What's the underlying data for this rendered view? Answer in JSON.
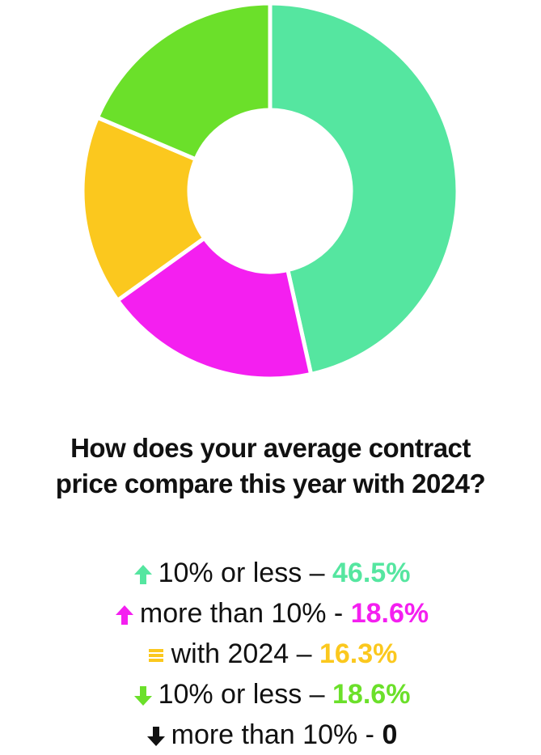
{
  "chart_data": {
    "type": "pie",
    "variant": "donut",
    "title": "How does your average contract price compare this year with 2024?",
    "title_lines": [
      "How does your average contract",
      "price compare this year with 2024?"
    ],
    "categories": [
      "↑ 10% or less",
      "↑ more than 10%",
      "= with 2024",
      "↓ 10% or less",
      "↓ more than 10%"
    ],
    "values": [
      46.5,
      18.6,
      16.3,
      18.6,
      0
    ],
    "colors": [
      "#55e6a0",
      "#f41ff0",
      "#fbc81e",
      "#6be02a",
      "#111111"
    ],
    "legend_placement": "bottom",
    "legend": [
      {
        "icon": "up-arrow-icon",
        "label": "10% or less –",
        "value_label": "46.5%",
        "color": "#55e6a0"
      },
      {
        "icon": "up-arrow-icon",
        "label": "more than 10% -",
        "value_label": "18.6%",
        "color": "#f41ff0"
      },
      {
        "icon": "equals-icon",
        "label": "with 2024 –",
        "value_label": "16.3%",
        "color": "#fbc81e"
      },
      {
        "icon": "down-arrow-icon",
        "label": "10% or less –",
        "value_label": "18.6%",
        "color": "#6be02a"
      },
      {
        "icon": "down-arrow-icon",
        "label": "more than 10% -",
        "value_label": "0",
        "color": "#111111"
      }
    ]
  }
}
